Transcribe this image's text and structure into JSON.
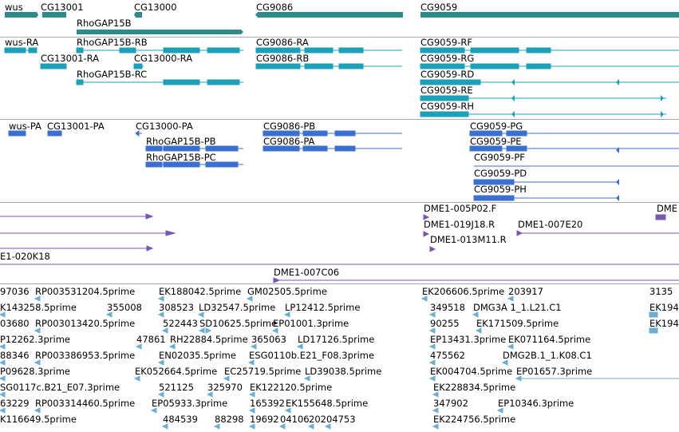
{
  "colors": {
    "gene": "#2e8b8b",
    "transcript": "#1aa0b8",
    "protein": "#3b6fd1",
    "bac": "#7a55b8",
    "est": "#6baed6",
    "separator": "#a9a9a9"
  },
  "tracks": {
    "genes": {
      "labels": [
        "wus",
        "CG13001",
        "CG13000",
        "CG9086",
        "CG9059",
        "RhoGAP15B"
      ]
    },
    "transcripts": {
      "labels": [
        "wus-RA",
        "RhoGAP15B-RB",
        "CG9086-RA",
        "CG9059-RF",
        "CG13001-RA",
        "CG13000-RA",
        "CG9086-RB",
        "CG9059-RG",
        "RhoGAP15B-RC",
        "CG9059-RD",
        "CG9059-RE",
        "CG9059-RH"
      ]
    },
    "proteins": {
      "labels": [
        "wus-PA",
        "CG13001-PA",
        "CG13000-PA",
        "CG9086-PB",
        "CG9059-PG",
        "RhoGAP15B-PB",
        "CG9086-PA",
        "CG9059-PE",
        "RhoGAP15B-PC",
        "CG9059-PF",
        "CG9059-PD",
        "CG9059-PH"
      ]
    },
    "bacs": {
      "labels": [
        "DME1-005P02.F",
        "DME",
        "DME1-019J18.R",
        "DME1-007E20",
        "DME1-013M11.R",
        "E1-020K18",
        "DME1-007C06"
      ]
    },
    "ests": {
      "rows": [
        [
          "97036",
          "RP003531204.5prime",
          "EK188042.5prime",
          "GM02505.5prime",
          "EK206606.5prime",
          "203917",
          "3135"
        ],
        [
          "K143258.5prime",
          "355008",
          "308523",
          "LD32547.5prime",
          "LP12412.5prime",
          "349518",
          "DMG3A 1_1.L21.C1",
          "EK194"
        ],
        [
          "03680",
          "RP003013420.5prime",
          "522443",
          "SD10625.5prime",
          "EP01001.3prime",
          "90255",
          "EK171509.5prime",
          "EK194"
        ],
        [
          "P12262.3prime",
          "47861",
          "RH22884.5prime",
          "365063",
          "LD17126.5prime",
          "EP13431.3prime",
          "EK071164.5prime"
        ],
        [
          "88346",
          "RP003386953.5prime",
          "EN02035.5prime",
          "ESG0110b.E21_F08.3prime",
          "475562",
          "DMG2B.1_1.K08.C1"
        ],
        [
          "P09628.3prime",
          "EK052664.5prime",
          "EC25719.5prime",
          "LD39038.5prime",
          "EK004704.5prime",
          "EP01657.3prime"
        ],
        [
          "SG0117c.B21_E07.3prime",
          "521125",
          "325970",
          "EK122120.5prime",
          "EK228834.5prime"
        ],
        [
          "63229",
          "RP003314460.5prime",
          "EP05933.3prime",
          "165392",
          "EK155648.5prime",
          "347902",
          "EP10346.3prime"
        ],
        [
          "K116649.5prime",
          "484539",
          "88298",
          "19692",
          "04106",
          "20204753",
          "EK224756.5prime"
        ]
      ]
    }
  }
}
